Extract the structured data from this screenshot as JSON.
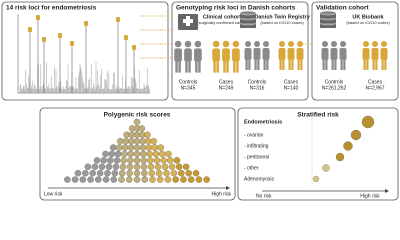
{
  "loci_panel": {
    "title": "14 risk loci for endometriosis"
  },
  "genotyping_panel": {
    "title": "Genotyping risk loci in Danish cohorts",
    "cohorts": [
      {
        "name": "Clinical cohort",
        "note": "(surgically confirmed cases)",
        "controls_label": "Controls",
        "controls_n": "N=345",
        "cases_label": "Cases",
        "cases_n": "N=249"
      },
      {
        "name": "Danish Twin Registry",
        "note": "(based on ICD10 codes)",
        "controls_label": "Controls",
        "controls_n": "N=316",
        "cases_label": "Cases",
        "cases_n": "N=140"
      }
    ]
  },
  "validation_panel": {
    "title": "Validation cohort",
    "name": "UK Biobank",
    "note": "(based on ICD10 codes)",
    "controls_label": "Controls",
    "controls_n": "N=261,262",
    "cases_label": "Cases",
    "cases_n": "N=2,967"
  },
  "prs_panel": {
    "title": "Polygenic risk scores",
    "low_label": "Low risk",
    "high_label": "High risk"
  },
  "stratified_panel": {
    "title": "Stratified risk",
    "rows": [
      "Endometriosis",
      "- ovarian",
      "- infiltrating",
      "- peritoneal",
      "- other",
      "Adenomyosis"
    ],
    "low_label": "No risk",
    "high_label": "High risk"
  }
}
